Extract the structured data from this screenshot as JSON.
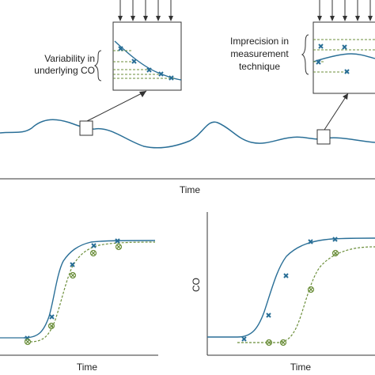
{
  "top_panel": {
    "annotation_left": [
      "Variability in",
      "underlying CO"
    ],
    "annotation_right": [
      "Imprecision in",
      "measurement",
      "technique"
    ],
    "x_axis_label": "Time"
  },
  "bottom_left": {
    "x_axis_label": "Time"
  },
  "bottom_right": {
    "x_axis_label": "Time",
    "y_axis_label": "CO"
  },
  "colors": {
    "true_curve": "#2a6f97",
    "measured_curve": "#6b8e3a",
    "axis": "#333333"
  },
  "icons": {
    "true_point": "blue-x-marker",
    "measured_point": "green-circled-x-marker",
    "input_arrows": "down-arrow"
  }
}
